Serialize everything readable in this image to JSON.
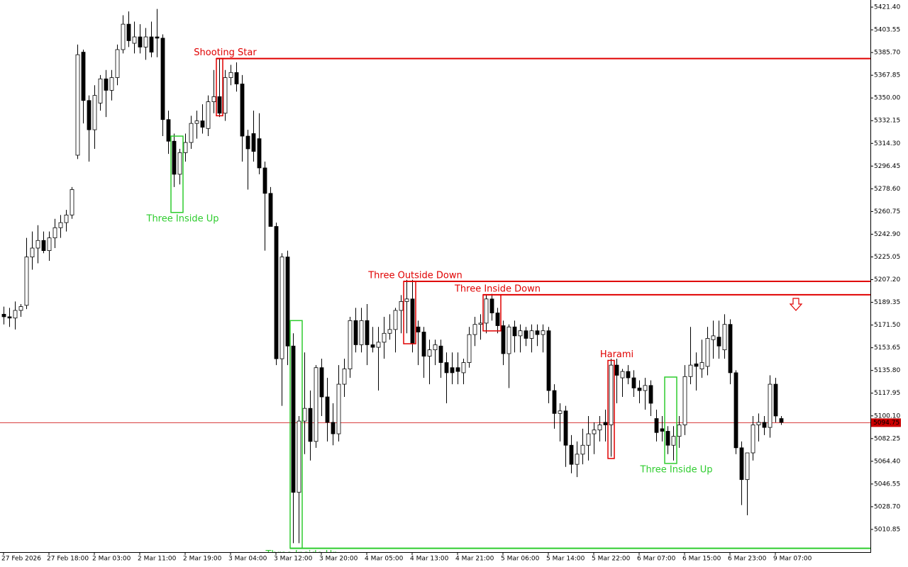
{
  "chart_data": {
    "type": "candlestick",
    "categories": [
      "27 Feb 2026",
      null,
      null,
      null,
      null,
      null,
      null,
      null,
      "27 Feb 18:00",
      null,
      null,
      null,
      null,
      null,
      null,
      null,
      "2 Mar 03:00",
      null,
      null,
      null,
      null,
      null,
      null,
      null,
      "2 Mar 11:00",
      null,
      null,
      null,
      null,
      null,
      null,
      null,
      "2 Mar 19:00",
      null,
      null,
      null,
      null,
      null,
      null,
      null,
      "3 Mar 04:00",
      null,
      null,
      null,
      null,
      null,
      null,
      null,
      "3 Mar 12:00",
      null,
      null,
      null,
      null,
      null,
      null,
      null,
      "3 Mar 20:00",
      null,
      null,
      null,
      null,
      null,
      null,
      null,
      "4 Mar 05:00",
      null,
      null,
      null,
      null,
      null,
      null,
      null,
      "4 Mar 13:00",
      null,
      null,
      null,
      null,
      null,
      null,
      null,
      "4 Mar 21:00",
      null,
      null,
      null,
      null,
      null,
      null,
      null,
      "5 Mar 06:00",
      null,
      null,
      null,
      null,
      null,
      null,
      null,
      "5 Mar 14:00",
      null,
      null,
      null,
      null,
      null,
      null,
      null,
      "5 Mar 22:00",
      null,
      null,
      null,
      null,
      null,
      null,
      null,
      "6 Mar 07:00",
      null,
      null,
      null,
      null,
      null,
      null,
      null,
      "6 Mar 15:00",
      null,
      null,
      null,
      null,
      null,
      null,
      null,
      "6 Mar 23:00",
      null,
      null,
      null,
      null,
      null,
      null,
      null,
      "9 Mar 07:00",
      null
    ],
    "ohlc": [
      [
        5180,
        5186,
        5172,
        5178
      ],
      [
        5178,
        5185,
        5170,
        5177
      ],
      [
        5177,
        5190,
        5168,
        5183
      ],
      [
        5183,
        5188,
        5178,
        5186
      ],
      [
        5187,
        5240,
        5184,
        5225
      ],
      [
        5225,
        5245,
        5215,
        5232
      ],
      [
        5232,
        5250,
        5220,
        5238
      ],
      [
        5238,
        5245,
        5228,
        5230
      ],
      [
        5230,
        5245,
        5222,
        5240
      ],
      [
        5240,
        5255,
        5232,
        5248
      ],
      [
        5248,
        5258,
        5240,
        5252
      ],
      [
        5252,
        5262,
        5245,
        5258
      ],
      [
        5258,
        5280,
        5255,
        5278
      ],
      [
        5305,
        5392,
        5302,
        5384
      ],
      [
        5386,
        5388,
        5330,
        5348
      ],
      [
        5348,
        5352,
        5300,
        5325
      ],
      [
        5325,
        5360,
        5310,
        5352
      ],
      [
        5346,
        5368,
        5340,
        5365
      ],
      [
        5365,
        5372,
        5335,
        5356
      ],
      [
        5356,
        5372,
        5348,
        5366
      ],
      [
        5366,
        5392,
        5360,
        5388
      ],
      [
        5388,
        5415,
        5385,
        5408
      ],
      [
        5408,
        5418,
        5390,
        5395
      ],
      [
        5393,
        5410,
        5385,
        5398
      ],
      [
        5398,
        5408,
        5385,
        5390
      ],
      [
        5390,
        5405,
        5380,
        5398
      ],
      [
        5398,
        5410,
        5382,
        5386
      ],
      [
        5398,
        5420,
        5382,
        5397
      ],
      [
        5397,
        5400,
        5320,
        5333
      ],
      [
        5333,
        5340,
        5306,
        5316
      ],
      [
        5316,
        5322,
        5280,
        5290
      ],
      [
        5290,
        5310,
        5282,
        5307
      ],
      [
        5307,
        5322,
        5300,
        5315
      ],
      [
        5315,
        5336,
        5310,
        5330
      ],
      [
        5330,
        5340,
        5318,
        5332
      ],
      [
        5332,
        5345,
        5322,
        5327
      ],
      [
        5326,
        5352,
        5320,
        5347
      ],
      [
        5347,
        5372,
        5338,
        5351
      ],
      [
        5351,
        5381,
        5335,
        5338
      ],
      [
        5338,
        5372,
        5332,
        5366
      ],
      [
        5366,
        5376,
        5360,
        5370
      ],
      [
        5370,
        5378,
        5355,
        5361
      ],
      [
        5361,
        5368,
        5300,
        5320
      ],
      [
        5320,
        5325,
        5278,
        5310
      ],
      [
        5322,
        5340,
        5300,
        5308
      ],
      [
        5318,
        5338,
        5290,
        5295
      ],
      [
        5295,
        5300,
        5230,
        5275
      ],
      [
        5275,
        5280,
        5250,
        5249
      ],
      [
        5249,
        5252,
        5140,
        5145
      ],
      [
        5145,
        5228,
        5108,
        5225
      ],
      [
        5225,
        5230,
        5140,
        5155
      ],
      [
        5155,
        5165,
        5000,
        5040
      ],
      [
        5040,
        5100,
        5000,
        5096
      ],
      [
        5096,
        5150,
        5070,
        5106
      ],
      [
        5106,
        5120,
        5065,
        5080
      ],
      [
        5080,
        5140,
        5075,
        5138
      ],
      [
        5138,
        5145,
        5100,
        5115
      ],
      [
        5115,
        5130,
        5080,
        5095
      ],
      [
        5095,
        5110,
        5077,
        5086
      ],
      [
        5086,
        5140,
        5080,
        5125
      ],
      [
        5125,
        5145,
        5115,
        5137
      ],
      [
        5137,
        5178,
        5130,
        5175
      ],
      [
        5175,
        5185,
        5150,
        5156
      ],
      [
        5156,
        5185,
        5150,
        5175
      ],
      [
        5175,
        5188,
        5140,
        5156
      ],
      [
        5156,
        5170,
        5150,
        5154
      ],
      [
        5154,
        5170,
        5120,
        5158
      ],
      [
        5158,
        5178,
        5145,
        5165
      ],
      [
        5165,
        5180,
        5160,
        5168
      ],
      [
        5168,
        5185,
        5150,
        5183
      ],
      [
        5183,
        5195,
        5165,
        5190
      ],
      [
        5190,
        5207,
        5165,
        5192
      ],
      [
        5192,
        5207,
        5150,
        5157
      ],
      [
        5170,
        5175,
        5140,
        5166
      ],
      [
        5166,
        5170,
        5130,
        5147
      ],
      [
        5147,
        5160,
        5125,
        5152
      ],
      [
        5152,
        5160,
        5140,
        5156
      ],
      [
        5155,
        5160,
        5130,
        5142
      ],
      [
        5142,
        5150,
        5110,
        5134
      ],
      [
        5138,
        5150,
        5125,
        5134
      ],
      [
        5138,
        5150,
        5125,
        5135
      ],
      [
        5134,
        5145,
        5125,
        5142
      ],
      [
        5142,
        5170,
        5138,
        5164
      ],
      [
        5164,
        5178,
        5155,
        5172
      ],
      [
        5172,
        5180,
        5160,
        5173
      ],
      [
        5173,
        5195,
        5165,
        5192
      ],
      [
        5192,
        5196,
        5175,
        5181
      ],
      [
        5181,
        5185,
        5165,
        5171
      ],
      [
        5171,
        5175,
        5140,
        5149
      ],
      [
        5149,
        5172,
        5122,
        5170
      ],
      [
        5170,
        5175,
        5150,
        5163
      ],
      [
        5163,
        5172,
        5150,
        5167
      ],
      [
        5167,
        5170,
        5155,
        5161
      ],
      [
        5161,
        5172,
        5150,
        5167
      ],
      [
        5167,
        5172,
        5155,
        5164
      ],
      [
        5164,
        5172,
        5150,
        5167
      ],
      [
        5167,
        5170,
        5110,
        5120
      ],
      [
        5120,
        5125,
        5090,
        5102
      ],
      [
        5102,
        5110,
        5080,
        5104
      ],
      [
        5104,
        5108,
        5060,
        5077
      ],
      [
        5077,
        5085,
        5055,
        5062
      ],
      [
        5062,
        5080,
        5052,
        5070
      ],
      [
        5070,
        5090,
        5062,
        5077
      ],
      [
        5077,
        5100,
        5065,
        5086
      ],
      [
        5086,
        5095,
        5070,
        5089
      ],
      [
        5089,
        5100,
        5080,
        5093
      ],
      [
        5095,
        5105,
        5080,
        5093
      ],
      [
        5093,
        5145,
        5068,
        5140
      ],
      [
        5140,
        5145,
        5110,
        5132
      ],
      [
        5130,
        5137,
        5115,
        5135
      ],
      [
        5135,
        5140,
        5125,
        5130
      ],
      [
        5130,
        5136,
        5115,
        5122
      ],
      [
        5122,
        5128,
        5110,
        5120
      ],
      [
        5120,
        5130,
        5105,
        5124
      ],
      [
        5124,
        5128,
        5100,
        5110
      ],
      [
        5098,
        5105,
        5080,
        5087
      ],
      [
        5090,
        5100,
        5080,
        5088
      ],
      [
        5088,
        5092,
        5070,
        5077
      ],
      [
        5077,
        5092,
        5065,
        5084
      ],
      [
        5084,
        5100,
        5075,
        5093
      ],
      [
        5093,
        5140,
        5085,
        5131
      ],
      [
        5131,
        5170,
        5125,
        5140
      ],
      [
        5141,
        5150,
        5120,
        5139
      ],
      [
        5137,
        5160,
        5130,
        5142
      ],
      [
        5139,
        5170,
        5132,
        5161
      ],
      [
        5160,
        5175,
        5145,
        5163
      ],
      [
        5162,
        5175,
        5145,
        5155
      ],
      [
        5152,
        5180,
        5145,
        5172
      ],
      [
        5172,
        5176,
        5125,
        5134
      ],
      [
        5134,
        5136,
        5070,
        5075
      ],
      [
        5075,
        5080,
        5030,
        5050
      ],
      [
        5050,
        5070,
        5022,
        5071
      ],
      [
        5071,
        5100,
        5065,
        5093
      ],
      [
        5093,
        5102,
        5080,
        5095
      ],
      [
        5095,
        5100,
        5085,
        5091
      ],
      [
        5091,
        5132,
        5083,
        5125
      ],
      [
        5125,
        5130,
        5095,
        5100
      ],
      [
        5098,
        5100,
        5093,
        5095
      ]
    ],
    "ylim": [
      4993,
      5427
    ],
    "yticks": [
      {
        "value": 5421.4,
        "label": "5421.40"
      },
      {
        "value": 5403.55,
        "label": "5403.55"
      },
      {
        "value": 5385.7,
        "label": "5385.70"
      },
      {
        "value": 5367.85,
        "label": "5367.85"
      },
      {
        "value": 5350,
        "label": "5350.00"
      },
      {
        "value": 5332.15,
        "label": "5332.15"
      },
      {
        "value": 5314.3,
        "label": "5314.30"
      },
      {
        "value": 5296.45,
        "label": "5296.45"
      },
      {
        "value": 5278.6,
        "label": "5278.60"
      },
      {
        "value": 5260.75,
        "label": "5260.75"
      },
      {
        "value": 5242.9,
        "label": "5242.90"
      },
      {
        "value": 5225.05,
        "label": "5225.05"
      },
      {
        "value": 5207.2,
        "label": "5207.20"
      },
      {
        "value": 5189.35,
        "label": "5189.35"
      },
      {
        "value": 5171.5,
        "label": "5171.50"
      },
      {
        "value": 5153.65,
        "label": "5153.65"
      },
      {
        "value": 5135.8,
        "label": "5135.80"
      },
      {
        "value": 5117.95,
        "label": "5117.95"
      },
      {
        "value": 5100.1,
        "label": "5100.10"
      },
      {
        "value": 5082.25,
        "label": "5082.25"
      },
      {
        "value": 5064.4,
        "label": "5064.40"
      },
      {
        "value": 5046.55,
        "label": "5046.55"
      },
      {
        "value": 5028.7,
        "label": "5028.70"
      },
      {
        "value": 5010.85,
        "label": "5010.85"
      }
    ],
    "current_price": 5094.75,
    "up_color": "#ffffff",
    "down_color": "#000000",
    "price_line_color": "#cc0000",
    "patterns": [
      {
        "label": "Shooting Star",
        "color": "#e00000",
        "candles": [
          38,
          38
        ],
        "top": 5381,
        "bottom": 5336,
        "level": 5381,
        "label_side": "top"
      },
      {
        "label": "Three Inside Up",
        "color": "#2ecc2e",
        "candles": [
          30,
          31
        ],
        "top": 5320,
        "bottom": 5260,
        "label_side": "bottom"
      },
      {
        "label": "Three Inside Up",
        "color": "#2ecc2e",
        "candles": [
          51,
          52
        ],
        "top": 5175,
        "bottom": 4996,
        "level": 4996,
        "label_side": "bottom"
      },
      {
        "label": "Three Outside Down",
        "color": "#e00000",
        "candles": [
          71,
          72
        ],
        "top": 5205.8,
        "bottom": 5156.8,
        "level": 5205.8,
        "label_side": "top"
      },
      {
        "label": "Three Inside Down",
        "color": "#e00000",
        "candles": [
          85,
          87
        ],
        "top": 5195.3,
        "bottom": 5166.9,
        "level": 5195.3,
        "label_side": "top"
      },
      {
        "label": "Harami",
        "color": "#e00000",
        "candles": [
          107,
          107
        ],
        "top": 5143.7,
        "bottom": 5066.6,
        "label_side": "top"
      },
      {
        "label": "Three Inside Up",
        "color": "#2ecc2e",
        "candles": [
          117,
          118
        ],
        "top": 5130.6,
        "bottom": 5062.7,
        "label_side": "bottom"
      }
    ]
  }
}
